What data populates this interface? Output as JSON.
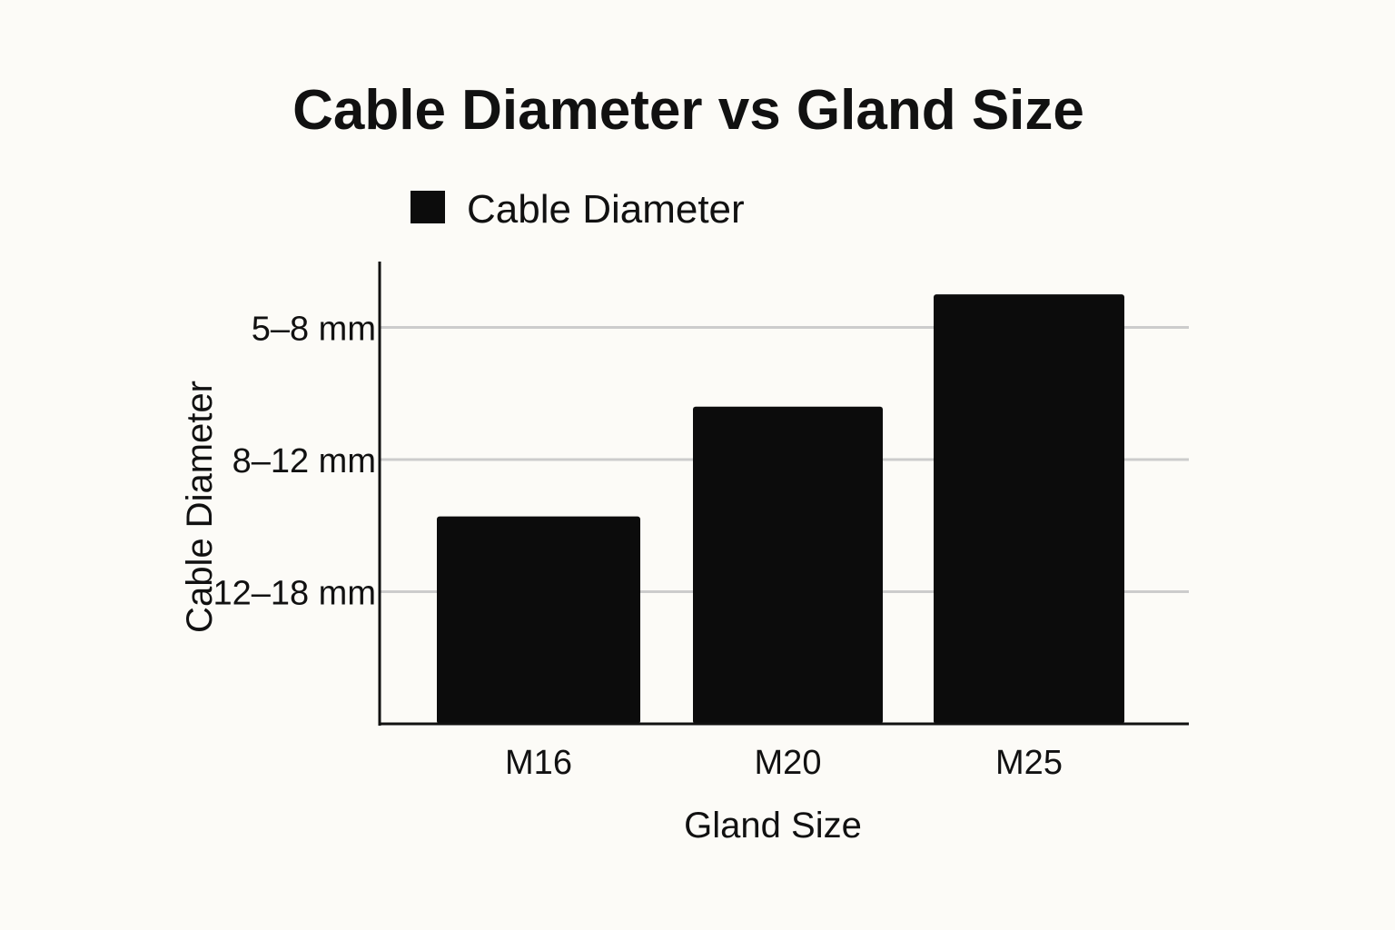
{
  "chart_data": {
    "type": "bar",
    "title": "Cable Diameter vs Gland Size",
    "xlabel": "Gland Size",
    "ylabel": "Cable Diameter",
    "categories": [
      "M16",
      "M20",
      "M25"
    ],
    "series": [
      {
        "name": "Cable Diameter",
        "values": [
          1.57,
          2.4,
          3.25
        ],
        "color": "#0c0c0c"
      }
    ],
    "y_tick_labels": [
      {
        "label": "12–18 mm",
        "position": 1
      },
      {
        "label": "8–12 mm",
        "position": 2
      },
      {
        "label": "5–8 mm",
        "position": 3
      }
    ],
    "ylim": [
      0,
      3
    ],
    "grid": true,
    "legend_position": "top-left",
    "colors": {
      "background": "#fcfbf7",
      "bar": "#0c0c0c",
      "grid": "#cccccc",
      "axis": "#111111",
      "text": "#111111"
    }
  }
}
